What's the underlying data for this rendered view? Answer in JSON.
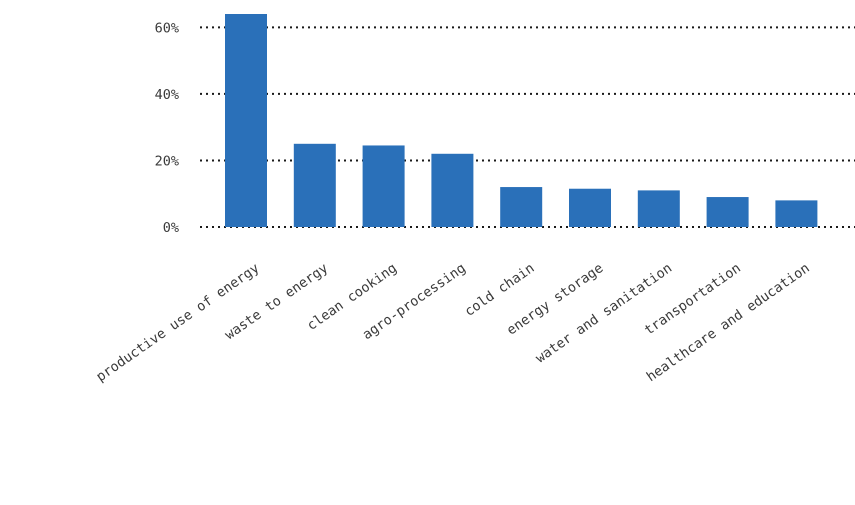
{
  "colors": {
    "bar": "#2a70b9",
    "grid": "#1a1a1a",
    "text": "#3a3a3a"
  },
  "chart_data": {
    "type": "bar",
    "categories": [
      "productive use of energy",
      "waste to energy",
      "clean cooking",
      "agro-processing",
      "cold chain",
      "energy storage",
      "water and sanitation",
      "transportation",
      "healthcare and education"
    ],
    "values": [
      64,
      25,
      24.5,
      22,
      12,
      11.5,
      11,
      9,
      8
    ],
    "yticks": [
      "0%",
      "20%",
      "40%",
      "60%"
    ],
    "ytick_values": [
      0,
      20,
      40,
      60
    ],
    "ylim": [
      0,
      64
    ],
    "grid": true,
    "grid_style": "dotted",
    "title": "",
    "xlabel": "",
    "ylabel": ""
  }
}
